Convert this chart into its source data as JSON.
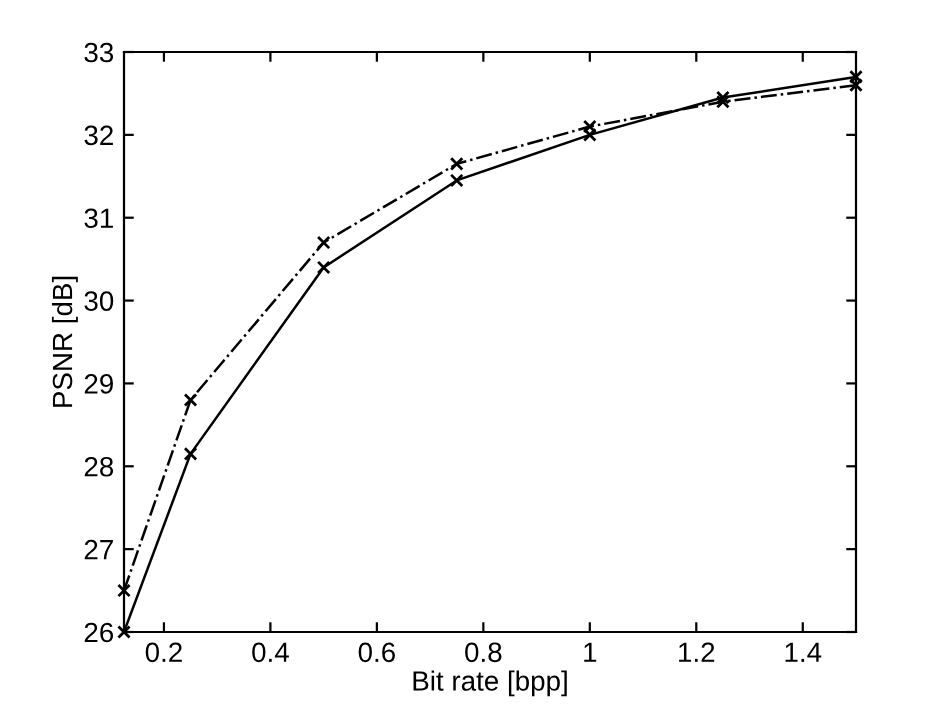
{
  "chart_data": {
    "type": "line",
    "xlabel": "Bit rate [bpp]",
    "ylabel": "PSNR [dB]",
    "x": [
      0.125,
      0.25,
      0.5,
      0.75,
      1.0,
      1.25,
      1.5
    ],
    "series": [
      {
        "color": "#000000",
        "line_style": "solid",
        "marker": "cross",
        "values": [
          26.0,
          28.15,
          30.4,
          31.45,
          32.0,
          32.45,
          32.7
        ]
      },
      {
        "color": "#000000",
        "line_style": "dashdot",
        "marker": "cross",
        "values": [
          26.5,
          28.8,
          30.7,
          31.65,
          32.1,
          32.4,
          32.6
        ]
      }
    ],
    "xlim": [
      0.125,
      1.5
    ],
    "ylim": [
      26,
      33
    ],
    "xticks": [
      0.2,
      0.4,
      0.6,
      0.8,
      1,
      1.2,
      1.4
    ],
    "yticks": [
      26,
      27,
      28,
      29,
      30,
      31,
      32,
      33
    ],
    "grid": false,
    "legend": false
  }
}
